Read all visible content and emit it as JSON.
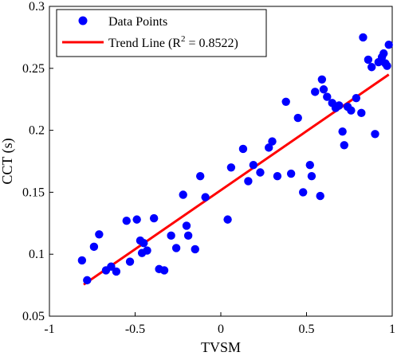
{
  "chart_data": {
    "type": "scatter",
    "xlabel": "TVSM",
    "ylabel": "CCT (s)",
    "xlim": [
      -1,
      1
    ],
    "ylim": [
      0.05,
      0.3
    ],
    "xticks": [
      "-1",
      "-0.5",
      "0",
      "0.5",
      "1"
    ],
    "yticks": [
      "0.05",
      "0.1",
      "0.15",
      "0.2",
      "0.25",
      "0.3"
    ],
    "grid": false,
    "legend_position": "top-left",
    "legend": {
      "points_label": "Data Points",
      "line_label_prefix": "Trend Line (R",
      "line_label_sup": "2",
      "line_label_suffix": " = 0.8522)"
    },
    "colors": {
      "points": "#0000ff",
      "trend": "#ff0000"
    },
    "series": [
      {
        "name": "Data Points",
        "kind": "scatter",
        "points": [
          [
            -0.81,
            0.095
          ],
          [
            -0.78,
            0.079
          ],
          [
            -0.74,
            0.106
          ],
          [
            -0.71,
            0.116
          ],
          [
            -0.67,
            0.087
          ],
          [
            -0.64,
            0.09
          ],
          [
            -0.61,
            0.086
          ],
          [
            -0.55,
            0.127
          ],
          [
            -0.53,
            0.094
          ],
          [
            -0.49,
            0.128
          ],
          [
            -0.47,
            0.111
          ],
          [
            -0.46,
            0.101
          ],
          [
            -0.45,
            0.109
          ],
          [
            -0.43,
            0.103
          ],
          [
            -0.39,
            0.129
          ],
          [
            -0.36,
            0.088
          ],
          [
            -0.33,
            0.087
          ],
          [
            -0.29,
            0.115
          ],
          [
            -0.26,
            0.105
          ],
          [
            -0.22,
            0.148
          ],
          [
            -0.2,
            0.123
          ],
          [
            -0.19,
            0.115
          ],
          [
            -0.15,
            0.104
          ],
          [
            -0.12,
            0.163
          ],
          [
            -0.09,
            0.146
          ],
          [
            0.04,
            0.128
          ],
          [
            0.06,
            0.17
          ],
          [
            0.13,
            0.185
          ],
          [
            0.16,
            0.159
          ],
          [
            0.19,
            0.172
          ],
          [
            0.23,
            0.166
          ],
          [
            0.28,
            0.186
          ],
          [
            0.3,
            0.191
          ],
          [
            0.33,
            0.163
          ],
          [
            0.38,
            0.223
          ],
          [
            0.41,
            0.165
          ],
          [
            0.45,
            0.21
          ],
          [
            0.48,
            0.15
          ],
          [
            0.52,
            0.172
          ],
          [
            0.53,
            0.163
          ],
          [
            0.55,
            0.231
          ],
          [
            0.58,
            0.147
          ],
          [
            0.59,
            0.241
          ],
          [
            0.6,
            0.233
          ],
          [
            0.62,
            0.227
          ],
          [
            0.65,
            0.222
          ],
          [
            0.67,
            0.218
          ],
          [
            0.69,
            0.22
          ],
          [
            0.71,
            0.199
          ],
          [
            0.72,
            0.188
          ],
          [
            0.74,
            0.219
          ],
          [
            0.76,
            0.216
          ],
          [
            0.79,
            0.226
          ],
          [
            0.82,
            0.214
          ],
          [
            0.83,
            0.275
          ],
          [
            0.86,
            0.257
          ],
          [
            0.88,
            0.251
          ],
          [
            0.9,
            0.197
          ],
          [
            0.92,
            0.255
          ],
          [
            0.94,
            0.259
          ],
          [
            0.95,
            0.262
          ],
          [
            0.96,
            0.254
          ],
          [
            0.97,
            0.252
          ],
          [
            0.98,
            0.269
          ]
        ]
      },
      {
        "name": "Trend Line (R2 = 0.8522)",
        "kind": "line",
        "points": [
          [
            -0.8,
            0.0755
          ],
          [
            0.98,
            0.245
          ]
        ]
      }
    ]
  }
}
